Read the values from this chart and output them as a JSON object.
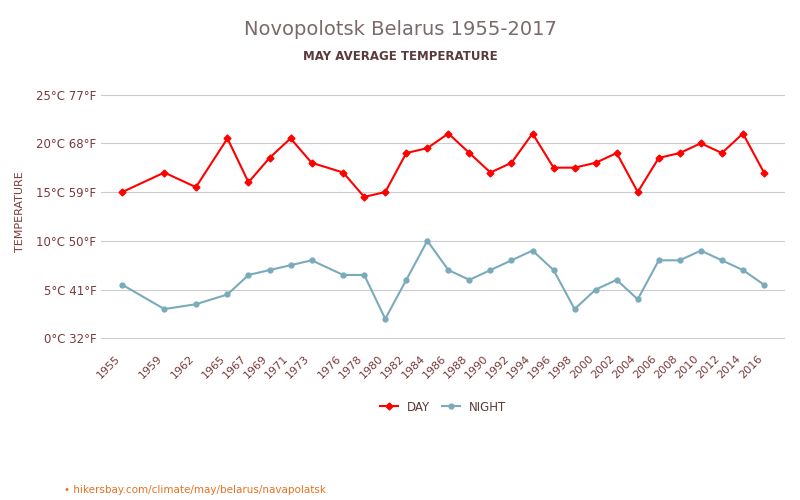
{
  "title": "Novopolotsk Belarus 1955-2017",
  "subtitle": "MAY AVERAGE TEMPERATURE",
  "xlabel": "",
  "ylabel": "TEMPERATURE",
  "url_text": "hikersbay.com/climate/may/belarus/navapolatsk",
  "title_color": "#7a6a6a",
  "subtitle_color": "#5a3a3a",
  "axis_label_color": "#7a3a3a",
  "tick_color": "#7a3a3a",
  "line_day_color": "#ff0000",
  "line_night_color": "#7aabba",
  "background_color": "#ffffff",
  "grid_color": "#cccccc",
  "years": [
    1955,
    1959,
    1962,
    1965,
    1967,
    1969,
    1971,
    1973,
    1976,
    1978,
    1980,
    1982,
    1984,
    1986,
    1988,
    1990,
    1992,
    1994,
    1996,
    1998,
    2000,
    2002,
    2004,
    2006,
    2008,
    2010,
    2012,
    2014,
    2016
  ],
  "day_temps": [
    15,
    17,
    15.5,
    20.5,
    16,
    18.5,
    20.5,
    18,
    17,
    14.5,
    15,
    19,
    19.5,
    21,
    19,
    17,
    18,
    21,
    17.5,
    17.5,
    18,
    19,
    15,
    18.5,
    19,
    20,
    19,
    21,
    17
  ],
  "night_temps": [
    5.5,
    3,
    3.5,
    4.5,
    6.5,
    7,
    7.5,
    8,
    6.5,
    6.5,
    2,
    6,
    10,
    7,
    6,
    7,
    8,
    9,
    7,
    3,
    5,
    6,
    4,
    8,
    8,
    9,
    8,
    7,
    5.5
  ],
  "yticks_celsius": [
    0,
    5,
    10,
    15,
    20,
    25
  ],
  "yticks_labels": [
    "0°C 32°F",
    "5°C 41°F",
    "10°C 50°F",
    "15°C 59°F",
    "20°C 68°F",
    "25°C 77°F"
  ],
  "ylim": [
    -1,
    27
  ],
  "legend_night": "NIGHT",
  "legend_day": "DAY"
}
